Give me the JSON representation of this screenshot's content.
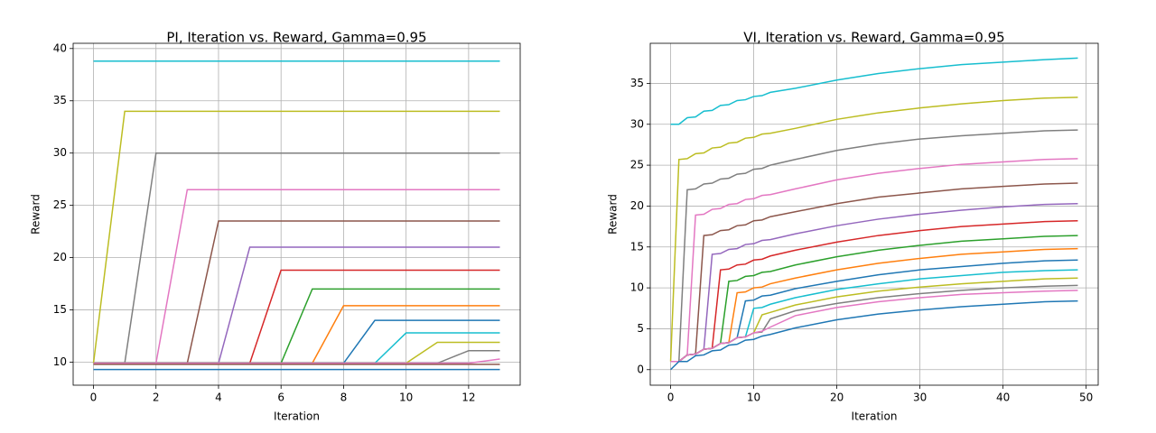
{
  "chart_data": [
    {
      "type": "line",
      "title": "PI, Iteration vs. Reward, Gamma=0.95",
      "x_label": "Iteration",
      "y_label": "Reward",
      "x": [
        0,
        1,
        2,
        3,
        4,
        5,
        6,
        7,
        8,
        9,
        10,
        11,
        12,
        13
      ],
      "xlim": [
        -0.65,
        13.65
      ],
      "xticks": [
        0,
        2,
        4,
        6,
        8,
        10,
        12
      ],
      "ylim": [
        7.8,
        40.5
      ],
      "yticks": [
        10,
        15,
        20,
        25,
        30,
        35,
        40
      ],
      "grid": true,
      "series": [
        {
          "color": "#17becf",
          "values": [
            38.8,
            38.8,
            38.8,
            38.8,
            38.8,
            38.8,
            38.8,
            38.8,
            38.8,
            38.8,
            38.8,
            38.8,
            38.8,
            38.8
          ]
        },
        {
          "color": "#bcbd22",
          "values": [
            9.9,
            34,
            34,
            34,
            34,
            34,
            34,
            34,
            34,
            34,
            34,
            34,
            34,
            34
          ]
        },
        {
          "color": "#7f7f7f",
          "values": [
            9.9,
            9.9,
            30,
            30,
            30,
            30,
            30,
            30,
            30,
            30,
            30,
            30,
            30,
            30
          ]
        },
        {
          "color": "#e377c2",
          "values": [
            9.9,
            9.9,
            9.9,
            26.5,
            26.5,
            26.5,
            26.5,
            26.5,
            26.5,
            26.5,
            26.5,
            26.5,
            26.5,
            26.5
          ]
        },
        {
          "color": "#8c564b",
          "values": [
            9.9,
            9.9,
            9.9,
            9.9,
            23.5,
            23.5,
            23.5,
            23.5,
            23.5,
            23.5,
            23.5,
            23.5,
            23.5,
            23.5
          ]
        },
        {
          "color": "#9467bd",
          "values": [
            9.9,
            9.9,
            9.9,
            9.9,
            9.9,
            21,
            21,
            21,
            21,
            21,
            21,
            21,
            21,
            21
          ]
        },
        {
          "color": "#d62728",
          "values": [
            9.9,
            9.9,
            9.9,
            9.9,
            9.9,
            9.9,
            18.8,
            18.8,
            18.8,
            18.8,
            18.8,
            18.8,
            18.8,
            18.8
          ]
        },
        {
          "color": "#2ca02c",
          "values": [
            9.9,
            9.9,
            9.9,
            9.9,
            9.9,
            9.9,
            9.9,
            17,
            17,
            17,
            17,
            17,
            17,
            17
          ]
        },
        {
          "color": "#ff7f0e",
          "values": [
            9.9,
            9.9,
            9.9,
            9.9,
            9.9,
            9.9,
            9.9,
            9.9,
            15.4,
            15.4,
            15.4,
            15.4,
            15.4,
            15.4
          ]
        },
        {
          "color": "#1f77b4",
          "values": [
            9.9,
            9.9,
            9.9,
            9.9,
            9.9,
            9.9,
            9.9,
            9.9,
            9.9,
            14,
            14,
            14,
            14,
            14
          ]
        },
        {
          "color": "#17becf",
          "values": [
            9.9,
            9.9,
            9.9,
            9.9,
            9.9,
            9.9,
            9.9,
            9.9,
            9.9,
            9.9,
            12.8,
            12.8,
            12.8,
            12.8
          ]
        },
        {
          "color": "#bcbd22",
          "values": [
            9.9,
            9.9,
            9.9,
            9.9,
            9.9,
            9.9,
            9.9,
            9.9,
            9.9,
            9.9,
            9.9,
            11.9,
            11.9,
            11.9
          ]
        },
        {
          "color": "#7f7f7f",
          "values": [
            9.9,
            9.9,
            9.9,
            9.9,
            9.9,
            9.9,
            9.9,
            9.9,
            9.9,
            9.9,
            9.9,
            9.9,
            11.1,
            11.1
          ]
        },
        {
          "color": "#e377c2",
          "values": [
            9.9,
            9.9,
            9.9,
            9.9,
            9.9,
            9.9,
            9.9,
            9.9,
            9.9,
            9.9,
            9.9,
            9.9,
            9.9,
            10.3
          ]
        },
        {
          "color": "#8c564b",
          "values": [
            9.8,
            9.8,
            9.8,
            9.8,
            9.8,
            9.8,
            9.8,
            9.8,
            9.8,
            9.8,
            9.8,
            9.8,
            9.8,
            9.8
          ]
        },
        {
          "color": "#1f77b4",
          "values": [
            9.3,
            9.3,
            9.3,
            9.3,
            9.3,
            9.3,
            9.3,
            9.3,
            9.3,
            9.3,
            9.3,
            9.3,
            9.3,
            9.3
          ]
        }
      ]
    },
    {
      "type": "line",
      "title": "VI, Iteration vs. Reward, Gamma=0.95",
      "x_label": "Iteration",
      "y_label": "Reward",
      "x": [
        0,
        1,
        2,
        3,
        4,
        5,
        6,
        7,
        8,
        9,
        10,
        11,
        12,
        15,
        20,
        25,
        30,
        35,
        40,
        45,
        49
      ],
      "xlim": [
        -2.45,
        51.45
      ],
      "xticks": [
        0,
        10,
        20,
        30,
        40,
        50
      ],
      "ylim": [
        -1.9,
        39.9
      ],
      "yticks": [
        0,
        5,
        10,
        15,
        20,
        25,
        30,
        35
      ],
      "grid": true,
      "series": [
        {
          "color": "#17becf",
          "values": [
            30,
            30,
            30.8,
            30.9,
            31.6,
            31.7,
            32.3,
            32.4,
            32.9,
            33.0,
            33.4,
            33.5,
            33.9,
            34.4,
            35.4,
            36.2,
            36.8,
            37.3,
            37.6,
            37.9,
            38.1
          ]
        },
        {
          "color": "#bcbd22",
          "values": [
            1,
            25.7,
            25.8,
            26.4,
            26.5,
            27.1,
            27.2,
            27.7,
            27.8,
            28.3,
            28.4,
            28.8,
            28.9,
            29.5,
            30.6,
            31.4,
            32.0,
            32.5,
            32.9,
            33.2,
            33.3
          ]
        },
        {
          "color": "#7f7f7f",
          "values": [
            1,
            1,
            22.0,
            22.1,
            22.7,
            22.8,
            23.3,
            23.4,
            23.9,
            24.0,
            24.5,
            24.6,
            25.0,
            25.7,
            26.8,
            27.6,
            28.2,
            28.6,
            28.9,
            29.2,
            29.3
          ]
        },
        {
          "color": "#e377c2",
          "values": [
            1,
            1,
            1.8,
            18.9,
            19.0,
            19.6,
            19.7,
            20.2,
            20.3,
            20.8,
            20.9,
            21.3,
            21.4,
            22.1,
            23.2,
            24.0,
            24.6,
            25.1,
            25.4,
            25.7,
            25.8
          ]
        },
        {
          "color": "#8c564b",
          "values": [
            1,
            1,
            1.8,
            1.9,
            16.4,
            16.5,
            17.0,
            17.1,
            17.6,
            17.7,
            18.2,
            18.3,
            18.7,
            19.3,
            20.3,
            21.1,
            21.6,
            22.1,
            22.4,
            22.7,
            22.8
          ]
        },
        {
          "color": "#9467bd",
          "values": [
            1,
            1,
            1.8,
            1.9,
            2.5,
            14.1,
            14.2,
            14.7,
            14.8,
            15.3,
            15.4,
            15.8,
            15.9,
            16.6,
            17.6,
            18.4,
            19.0,
            19.5,
            19.9,
            20.2,
            20.3
          ]
        },
        {
          "color": "#d62728",
          "values": [
            1,
            1,
            1.8,
            1.9,
            2.5,
            2.6,
            12.2,
            12.3,
            12.8,
            12.9,
            13.4,
            13.5,
            13.9,
            14.6,
            15.6,
            16.4,
            17.0,
            17.5,
            17.8,
            18.1,
            18.2
          ]
        },
        {
          "color": "#2ca02c",
          "values": [
            1,
            1,
            1.8,
            1.9,
            2.5,
            2.6,
            3.2,
            10.8,
            10.9,
            11.4,
            11.5,
            11.9,
            12.0,
            12.8,
            13.8,
            14.6,
            15.2,
            15.7,
            16.0,
            16.3,
            16.4
          ]
        },
        {
          "color": "#ff7f0e",
          "values": [
            1,
            1,
            1.8,
            1.9,
            2.5,
            2.6,
            3.2,
            3.3,
            9.4,
            9.5,
            10.0,
            10.1,
            10.5,
            11.2,
            12.2,
            13.0,
            13.6,
            14.1,
            14.4,
            14.7,
            14.8
          ]
        },
        {
          "color": "#1f77b4",
          "values": [
            1,
            1,
            1.8,
            1.9,
            2.5,
            2.6,
            3.2,
            3.3,
            3.9,
            8.4,
            8.5,
            9.0,
            9.1,
            9.9,
            10.8,
            11.6,
            12.2,
            12.6,
            13.0,
            13.3,
            13.4
          ]
        },
        {
          "color": "#17becf",
          "values": [
            1,
            1,
            1.8,
            1.9,
            2.5,
            2.6,
            3.2,
            3.3,
            3.9,
            4.0,
            7.5,
            7.6,
            8.0,
            8.8,
            9.8,
            10.5,
            11.1,
            11.5,
            11.9,
            12.1,
            12.2
          ]
        },
        {
          "color": "#bcbd22",
          "values": [
            1,
            1,
            1.8,
            1.9,
            2.5,
            2.6,
            3.2,
            3.3,
            3.9,
            4.0,
            4.5,
            6.7,
            7.0,
            7.9,
            8.9,
            9.6,
            10.1,
            10.5,
            10.8,
            11.1,
            11.2
          ]
        },
        {
          "color": "#7f7f7f",
          "values": [
            1,
            1,
            1.8,
            1.9,
            2.5,
            2.6,
            3.2,
            3.3,
            3.9,
            4.0,
            4.5,
            4.6,
            6.2,
            7.2,
            8.1,
            8.8,
            9.3,
            9.7,
            10.0,
            10.2,
            10.3
          ]
        },
        {
          "color": "#e377c2",
          "values": [
            1,
            1,
            1.8,
            1.9,
            2.5,
            2.6,
            3.2,
            3.3,
            3.9,
            4.0,
            4.5,
            4.7,
            5.2,
            6.6,
            7.6,
            8.3,
            8.8,
            9.2,
            9.4,
            9.6,
            9.7
          ]
        },
        {
          "color": "#1f77b4",
          "values": [
            0,
            1,
            1,
            1.7,
            1.8,
            2.3,
            2.4,
            3.0,
            3.1,
            3.6,
            3.7,
            4.1,
            4.3,
            5.1,
            6.1,
            6.8,
            7.3,
            7.7,
            8.0,
            8.3,
            8.4
          ]
        }
      ]
    }
  ]
}
